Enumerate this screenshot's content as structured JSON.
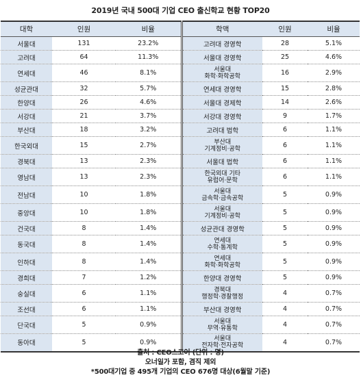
{
  "title": "2019년 국내 500대 기업 CEO 출신학교 현황 TOP20",
  "headers": {
    "university": "대학",
    "count": "인원",
    "ratio": "비율",
    "major": "학맥",
    "major_count": "인원",
    "major_ratio": "비율"
  },
  "rows": [
    {
      "university": "서울대",
      "count": "131",
      "ratio": "23.2%",
      "major": [
        "고려대 경영학"
      ],
      "major_count": "28",
      "major_ratio": "5.1%"
    },
    {
      "university": "고려대",
      "count": "64",
      "ratio": "11.3%",
      "major": [
        "서울대 경영학"
      ],
      "major_count": "25",
      "major_ratio": "4.6%"
    },
    {
      "university": "연세대",
      "count": "46",
      "ratio": "8.1%",
      "major": [
        "서울대",
        "화학·화학공학"
      ],
      "major_count": "16",
      "major_ratio": "2.9%"
    },
    {
      "university": "성균관대",
      "count": "32",
      "ratio": "5.7%",
      "major": [
        "연세대 경영학"
      ],
      "major_count": "15",
      "major_ratio": "2.8%"
    },
    {
      "university": "한양대",
      "count": "26",
      "ratio": "4.6%",
      "major": [
        "서울대 경제학"
      ],
      "major_count": "14",
      "major_ratio": "2.6%"
    },
    {
      "university": "서강대",
      "count": "21",
      "ratio": "3.7%",
      "major": [
        "서강대 경영학"
      ],
      "major_count": "9",
      "major_ratio": "1.7%"
    },
    {
      "university": "부산대",
      "count": "18",
      "ratio": "3.2%",
      "major": [
        "고려대 법학"
      ],
      "major_count": "6",
      "major_ratio": "1.1%"
    },
    {
      "university": "한국외대",
      "count": "15",
      "ratio": "2.7%",
      "major": [
        "부산대",
        "기계정비·공학"
      ],
      "major_count": "6",
      "major_ratio": "1.1%"
    },
    {
      "university": "경북대",
      "count": "13",
      "ratio": "2.3%",
      "major": [
        "서울대 법학"
      ],
      "major_count": "6",
      "major_ratio": "1.1%"
    },
    {
      "university": "영남대",
      "count": "13",
      "ratio": "2.3%",
      "major": [
        "한국외대 기타",
        "유럽어·문학"
      ],
      "major_count": "6",
      "major_ratio": "1.1%"
    },
    {
      "university": "전남대",
      "count": "10",
      "ratio": "1.8%",
      "major": [
        "서울대",
        "금속학·금속공학"
      ],
      "major_count": "5",
      "major_ratio": "0.9%"
    },
    {
      "university": "중앙대",
      "count": "10",
      "ratio": "1.8%",
      "major": [
        "서울대",
        "기계정비·공학"
      ],
      "major_count": "5",
      "major_ratio": "0.9%"
    },
    {
      "university": "건국대",
      "count": "8",
      "ratio": "1.4%",
      "major": [
        "성균관대 경영학"
      ],
      "major_count": "5",
      "major_ratio": "0.9%"
    },
    {
      "university": "동국대",
      "count": "8",
      "ratio": "1.4%",
      "major": [
        "연세대",
        "수학·통계학"
      ],
      "major_count": "5",
      "major_ratio": "0.9%"
    },
    {
      "university": "인하대",
      "count": "8",
      "ratio": "1.4%",
      "major": [
        "연세대",
        "화학·화학공학"
      ],
      "major_count": "5",
      "major_ratio": "0.9%"
    },
    {
      "university": "경희대",
      "count": "7",
      "ratio": "1.2%",
      "major": [
        "한양대 경영학"
      ],
      "major_count": "5",
      "major_ratio": "0.9%"
    },
    {
      "university": "숭실대",
      "count": "6",
      "ratio": "1.1%",
      "major": [
        "경북대",
        "행정학·경찰행정"
      ],
      "major_count": "4",
      "major_ratio": "0.7%"
    },
    {
      "university": "조선대",
      "count": "6",
      "ratio": "1.1%",
      "major": [
        "부산대 경영학"
      ],
      "major_count": "4",
      "major_ratio": "0.7%"
    },
    {
      "university": "단국대",
      "count": "5",
      "ratio": "0.9%",
      "major": [
        "서울대",
        "무역·유통학"
      ],
      "major_count": "4",
      "major_ratio": "0.7%"
    },
    {
      "university": "동아대",
      "count": "5",
      "ratio": "0.9%",
      "major": [
        "서울대",
        "전자학·전자공학"
      ],
      "major_count": "4",
      "major_ratio": "0.7%"
    }
  ],
  "footer": {
    "line1": "출처 : CEO스코어 (단위 : 명)",
    "line2": "오너일가 포함, 겸직 제외",
    "line3": "*500대기업 중 495개 기업의 CEO 676명 대상(6월말 기준)"
  }
}
